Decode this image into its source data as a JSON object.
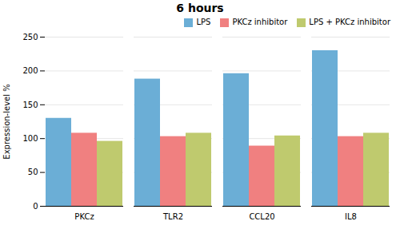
{
  "chart_data": {
    "type": "bar",
    "title": "6 hours",
    "categories": [
      "PKCz",
      "TLR2",
      "CCL20",
      "IL8"
    ],
    "series": [
      {
        "name": "LPS",
        "color": "#6BAED6",
        "values": [
          130,
          188,
          196,
          230
        ]
      },
      {
        "name": "PKCz inhibitor",
        "color": "#F08080",
        "values": [
          108,
          103,
          89,
          103
        ]
      },
      {
        "name": "LPS + PKCz inhibitor",
        "color": "#BFCA6E",
        "values": [
          96,
          108,
          104,
          108
        ]
      }
    ],
    "ylabel": "Expression-level %",
    "ylim": [
      0,
      250
    ],
    "yticks": [
      0,
      50,
      100,
      150,
      200,
      250
    ],
    "grid": true,
    "legend": "upper right"
  }
}
